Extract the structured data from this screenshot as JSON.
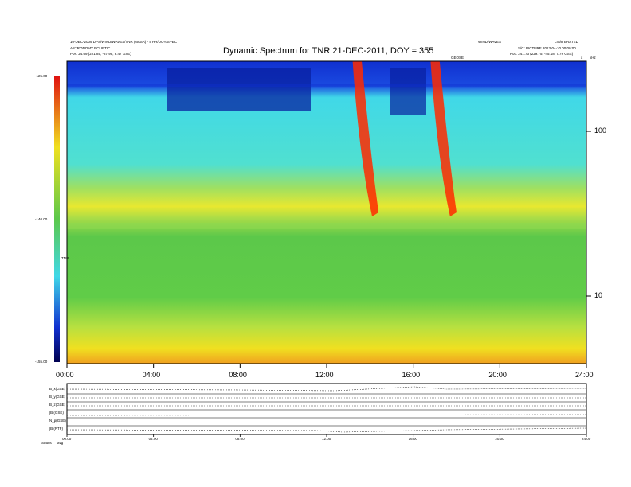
{
  "header": {
    "left_line1": "10-DEC-2009 DPS/WIND/WAVES/TNR (NASA) - 4 HR/DOY/SPEC",
    "left_line2": "ASTRONOMY ECLIPTIC",
    "left_pos": "Pos: 24.69 (221.85, -87.95, 8.47 GSE)",
    "right_line1": "WIND/WAVES",
    "right_line2": "S/C: PICTURE 2013-04-10 00:00:00",
    "right_pos": "Pos: 241.73 (229.75, -45.18, 7.79 GSE)",
    "right_tag": "LIB/ITERATED",
    "center_tag": "GEOSE",
    "title": "Dynamic Spectrum for TNR 21-DEC-2011, DOY = 355"
  },
  "colorbar": {
    "max_label": "-125.00",
    "mid_label": "-140.00",
    "min_label": "-155.00",
    "unit": "TNR"
  },
  "right_axis": {
    "top_label": "kHz",
    "side_tag": "x"
  },
  "panels": {
    "labels": [
      "B_x(GSE)",
      "B_y(GSE)",
      "B_z(GSE)",
      "|B|(GSE)",
      "N_p(GSE)",
      "|B|(RTF)"
    ],
    "bottom_label": "Status",
    "bottom_value": "avg"
  },
  "chart_data": {
    "type": "heatmap",
    "title": "Dynamic Spectrum for TNR 21-DEC-2011, DOY = 355",
    "x": {
      "label": "",
      "range_hours": [
        0,
        24
      ],
      "ticks": [
        "00:00",
        "04:00",
        "08:00",
        "12:00",
        "16:00",
        "20:00",
        "24:00"
      ]
    },
    "y": {
      "label": "kHz",
      "scale": "log",
      "range": [
        4,
        250
      ],
      "ticks": [
        10,
        100
      ]
    },
    "colorbar": {
      "min": -155,
      "max": -125,
      "ticks": [
        -155,
        -140,
        -125
      ]
    },
    "colors": {
      "low": "#f0e020",
      "mid": "#5cc84a",
      "quiet": "#40d8e8",
      "high": "#1030d0",
      "burst": "#ff2a00"
    },
    "bursts": [
      {
        "start_hour": 13.2,
        "end_hour": 14.4
      },
      {
        "start_hour": 16.8,
        "end_hour": 18.0
      }
    ],
    "mini_x_ticks": [
      "00:00",
      "04:00",
      "08:00",
      "12:00",
      "16:00",
      "20:00",
      "24:00"
    ]
  }
}
